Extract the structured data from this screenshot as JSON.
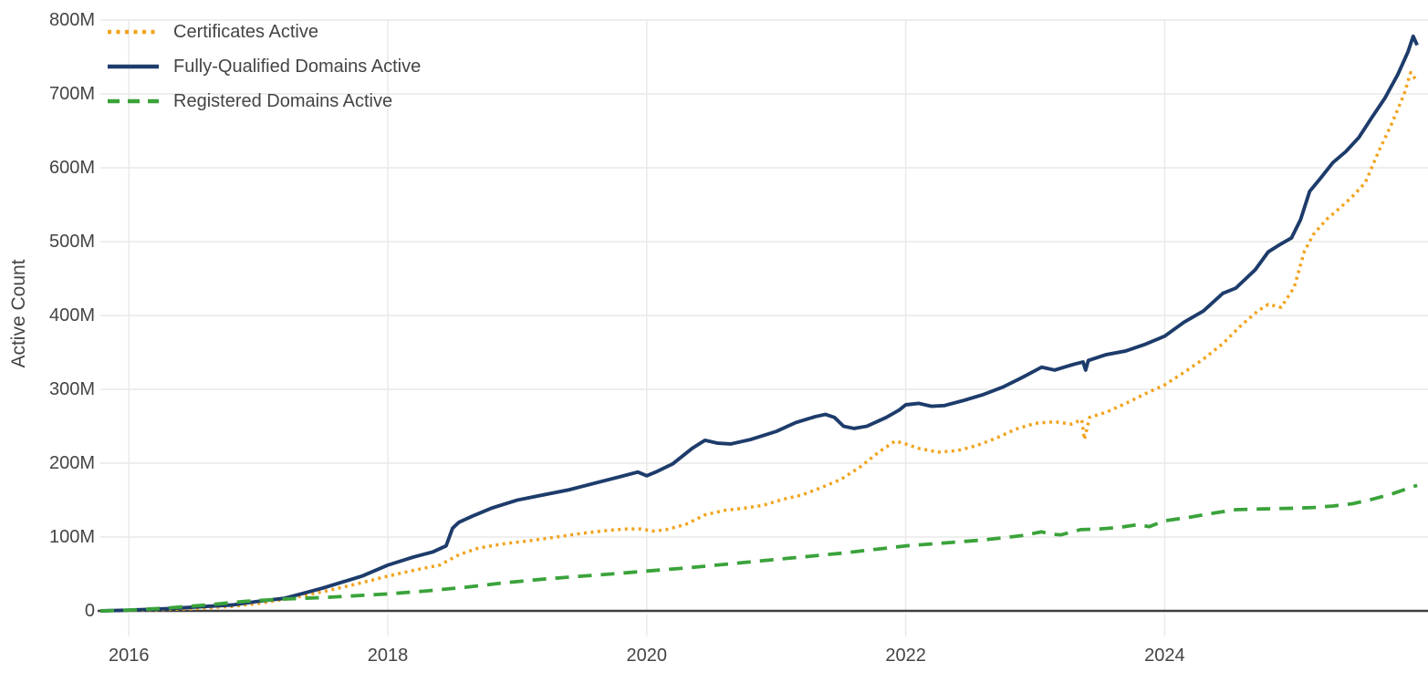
{
  "chart_data": {
    "type": "line",
    "title": "",
    "xlabel": "",
    "ylabel": "Active Count",
    "unit": "millions",
    "xlim": [
      2015.78,
      2026.02
    ],
    "ylim": [
      0,
      800
    ],
    "grid": true,
    "legend_position": "top-left",
    "grid_color": "#e9e9e9",
    "zero_line_color": "#3f3f3f",
    "text_color": "#444444",
    "yticks": [
      {
        "v": 800,
        "label": "800M"
      },
      {
        "v": 700,
        "label": "700M"
      },
      {
        "v": 600,
        "label": "600M"
      },
      {
        "v": 500,
        "label": "500M"
      },
      {
        "v": 400,
        "label": "400M"
      },
      {
        "v": 300,
        "label": "300M"
      },
      {
        "v": 200,
        "label": "200M"
      },
      {
        "v": 100,
        "label": "100M"
      },
      {
        "v": 0,
        "label": "0"
      }
    ],
    "xticks": [
      {
        "v": 2016,
        "label": "2016"
      },
      {
        "v": 2018,
        "label": "2018"
      },
      {
        "v": 2020,
        "label": "2020"
      },
      {
        "v": 2022,
        "label": "2022"
      },
      {
        "v": 2024,
        "label": "2024"
      }
    ],
    "series": [
      {
        "name": "Certificates Active",
        "color": "#f2a31c",
        "style": "dotted",
        "points": [
          [
            2015.78,
            0
          ],
          [
            2016.1,
            1
          ],
          [
            2016.5,
            3
          ],
          [
            2016.8,
            6
          ],
          [
            2017.0,
            10
          ],
          [
            2017.25,
            17
          ],
          [
            2017.5,
            26
          ],
          [
            2017.75,
            36
          ],
          [
            2018.0,
            47
          ],
          [
            2018.2,
            55
          ],
          [
            2018.4,
            62
          ],
          [
            2018.55,
            76
          ],
          [
            2018.7,
            85
          ],
          [
            2018.9,
            91
          ],
          [
            2019.1,
            95
          ],
          [
            2019.3,
            100
          ],
          [
            2019.5,
            105
          ],
          [
            2019.7,
            109
          ],
          [
            2019.85,
            111
          ],
          [
            2019.95,
            111
          ],
          [
            2020.05,
            108
          ],
          [
            2020.15,
            110
          ],
          [
            2020.3,
            117
          ],
          [
            2020.45,
            130
          ],
          [
            2020.6,
            136
          ],
          [
            2020.75,
            139
          ],
          [
            2020.9,
            143
          ],
          [
            2021.05,
            151
          ],
          [
            2021.2,
            157
          ],
          [
            2021.35,
            167
          ],
          [
            2021.5,
            178
          ],
          [
            2021.65,
            195
          ],
          [
            2021.8,
            216
          ],
          [
            2021.92,
            230
          ],
          [
            2022.0,
            226
          ],
          [
            2022.1,
            220
          ],
          [
            2022.25,
            215
          ],
          [
            2022.4,
            217
          ],
          [
            2022.55,
            224
          ],
          [
            2022.7,
            234
          ],
          [
            2022.85,
            246
          ],
          [
            2023.0,
            254
          ],
          [
            2023.15,
            256
          ],
          [
            2023.28,
            253
          ],
          [
            2023.36,
            259
          ],
          [
            2023.38,
            232
          ],
          [
            2023.42,
            262
          ],
          [
            2023.55,
            269
          ],
          [
            2023.7,
            281
          ],
          [
            2023.85,
            294
          ],
          [
            2024.0,
            306
          ],
          [
            2024.15,
            323
          ],
          [
            2024.3,
            341
          ],
          [
            2024.45,
            362
          ],
          [
            2024.6,
            388
          ],
          [
            2024.72,
            406
          ],
          [
            2024.8,
            415
          ],
          [
            2024.9,
            411
          ],
          [
            2025.0,
            438
          ],
          [
            2025.08,
            487
          ],
          [
            2025.15,
            510
          ],
          [
            2025.25,
            530
          ],
          [
            2025.35,
            545
          ],
          [
            2025.45,
            561
          ],
          [
            2025.55,
            580
          ],
          [
            2025.65,
            621
          ],
          [
            2025.75,
            658
          ],
          [
            2025.85,
            700
          ],
          [
            2025.9,
            729
          ],
          [
            2025.95,
            717
          ]
        ]
      },
      {
        "name": "Fully-Qualified Domains Active",
        "color": "#1d3c6b",
        "style": "solid",
        "points": [
          [
            2015.78,
            0
          ],
          [
            2016.0,
            1
          ],
          [
            2016.3,
            3
          ],
          [
            2016.6,
            6
          ],
          [
            2016.8,
            8
          ],
          [
            2017.0,
            13
          ],
          [
            2017.2,
            17
          ],
          [
            2017.35,
            24
          ],
          [
            2017.5,
            31
          ],
          [
            2017.65,
            39
          ],
          [
            2017.8,
            47
          ],
          [
            2018.0,
            62
          ],
          [
            2018.2,
            73
          ],
          [
            2018.35,
            80
          ],
          [
            2018.45,
            88
          ],
          [
            2018.5,
            112
          ],
          [
            2018.55,
            120
          ],
          [
            2018.65,
            128
          ],
          [
            2018.8,
            139
          ],
          [
            2019.0,
            150
          ],
          [
            2019.2,
            157
          ],
          [
            2019.4,
            164
          ],
          [
            2019.6,
            173
          ],
          [
            2019.8,
            182
          ],
          [
            2019.93,
            188
          ],
          [
            2020.0,
            183
          ],
          [
            2020.07,
            188
          ],
          [
            2020.2,
            199
          ],
          [
            2020.35,
            220
          ],
          [
            2020.45,
            231
          ],
          [
            2020.55,
            227
          ],
          [
            2020.65,
            226
          ],
          [
            2020.8,
            232
          ],
          [
            2021.0,
            243
          ],
          [
            2021.15,
            255
          ],
          [
            2021.3,
            263
          ],
          [
            2021.38,
            266
          ],
          [
            2021.45,
            262
          ],
          [
            2021.52,
            250
          ],
          [
            2021.6,
            247
          ],
          [
            2021.7,
            250
          ],
          [
            2021.85,
            262
          ],
          [
            2021.95,
            272
          ],
          [
            2022.0,
            279
          ],
          [
            2022.1,
            281
          ],
          [
            2022.2,
            277
          ],
          [
            2022.3,
            278
          ],
          [
            2022.45,
            285
          ],
          [
            2022.6,
            293
          ],
          [
            2022.75,
            303
          ],
          [
            2022.9,
            316
          ],
          [
            2023.05,
            330
          ],
          [
            2023.15,
            326
          ],
          [
            2023.3,
            334
          ],
          [
            2023.37,
            337
          ],
          [
            2023.39,
            326
          ],
          [
            2023.41,
            339
          ],
          [
            2023.55,
            347
          ],
          [
            2023.7,
            352
          ],
          [
            2023.85,
            361
          ],
          [
            2024.0,
            372
          ],
          [
            2024.15,
            391
          ],
          [
            2024.3,
            406
          ],
          [
            2024.45,
            430
          ],
          [
            2024.55,
            437
          ],
          [
            2024.7,
            462
          ],
          [
            2024.8,
            486
          ],
          [
            2024.9,
            497
          ],
          [
            2024.98,
            505
          ],
          [
            2025.05,
            530
          ],
          [
            2025.12,
            568
          ],
          [
            2025.2,
            585
          ],
          [
            2025.3,
            607
          ],
          [
            2025.4,
            622
          ],
          [
            2025.5,
            641
          ],
          [
            2025.6,
            668
          ],
          [
            2025.7,
            694
          ],
          [
            2025.8,
            726
          ],
          [
            2025.88,
            757
          ],
          [
            2025.92,
            778
          ],
          [
            2025.95,
            766
          ]
        ]
      },
      {
        "name": "Registered Domains Active",
        "color": "#3aa33a",
        "style": "dashed",
        "points": [
          [
            2015.78,
            0
          ],
          [
            2016.0,
            1
          ],
          [
            2016.3,
            4
          ],
          [
            2016.6,
            8
          ],
          [
            2016.9,
            13
          ],
          [
            2017.2,
            16
          ],
          [
            2017.5,
            18
          ],
          [
            2017.8,
            21
          ],
          [
            2018.0,
            23
          ],
          [
            2018.3,
            27
          ],
          [
            2018.6,
            32
          ],
          [
            2018.9,
            38
          ],
          [
            2019.2,
            43
          ],
          [
            2019.5,
            47
          ],
          [
            2019.8,
            51
          ],
          [
            2020.0,
            54
          ],
          [
            2020.3,
            58
          ],
          [
            2020.6,
            63
          ],
          [
            2020.9,
            68
          ],
          [
            2021.2,
            73
          ],
          [
            2021.5,
            78
          ],
          [
            2021.8,
            84
          ],
          [
            2022.0,
            88
          ],
          [
            2022.3,
            92
          ],
          [
            2022.6,
            96
          ],
          [
            2022.9,
            102
          ],
          [
            2023.05,
            107
          ],
          [
            2023.12,
            104
          ],
          [
            2023.2,
            103
          ],
          [
            2023.35,
            110
          ],
          [
            2023.5,
            111
          ],
          [
            2023.65,
            113
          ],
          [
            2023.8,
            117
          ],
          [
            2023.88,
            114
          ],
          [
            2024.0,
            122
          ],
          [
            2024.2,
            127
          ],
          [
            2024.4,
            133
          ],
          [
            2024.55,
            137
          ],
          [
            2024.75,
            138
          ],
          [
            2025.0,
            139
          ],
          [
            2025.15,
            140
          ],
          [
            2025.3,
            142
          ],
          [
            2025.45,
            145
          ],
          [
            2025.6,
            151
          ],
          [
            2025.75,
            158
          ],
          [
            2025.95,
            170
          ]
        ]
      }
    ]
  }
}
